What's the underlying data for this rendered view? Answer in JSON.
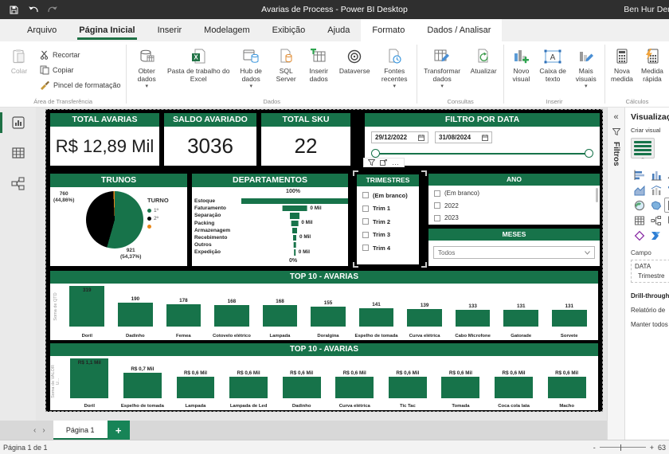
{
  "colors": {
    "green": "#17734a",
    "orange": "#e8871a",
    "accent": "#1e7145"
  },
  "title_bar": {
    "title": "Avarias de Process - Power BI Desktop",
    "user": "Ben Hur Den"
  },
  "tabs": [
    {
      "label": "Arquivo"
    },
    {
      "label": "Página Inicial"
    },
    {
      "label": "Inserir"
    },
    {
      "label": "Modelagem"
    },
    {
      "label": "Exibição"
    },
    {
      "label": "Ajuda"
    },
    {
      "label": "Formato"
    },
    {
      "label": "Dados / Analisar"
    }
  ],
  "ribbon": {
    "colar": "Colar",
    "recortar": "Recortar",
    "copiar": "Copiar",
    "pincel": "Pincel de formatação",
    "g_transferencia": "Área de Transferência",
    "obter_dados": "Obter dados",
    "excel": "Pasta de trabalho do Excel",
    "hub": "Hub de dados",
    "sql": "SQL Server",
    "inserir_dados": "Inserir dados",
    "dataverse": "Dataverse",
    "fontes": "Fontes recentes",
    "g_dados": "Dados",
    "transformar": "Transformar dados",
    "atualizar": "Atualizar",
    "g_consultas": "Consultas",
    "novo_visual": "Novo visual",
    "caixa_texto": "Caixa de texto",
    "mais_visuais": "Mais visuais",
    "g_inserir": "Inserir",
    "nova_medida": "Nova medida",
    "medida_rapida": "Medida rápida",
    "g_calculos": "Cálculos"
  },
  "dashboard": {
    "kpis": [
      {
        "title": "TOTAL AVARIAS",
        "value": "R$ 12,89 Mil"
      },
      {
        "title": "SALDO AVARIADO",
        "value": "3036"
      },
      {
        "title": "TOTAL SKU",
        "value": "22"
      }
    ],
    "date_filter": {
      "title": "FILTRO POR DATA",
      "start": "29/12/2022",
      "end": "31/08/2024"
    },
    "trimestres": {
      "title": "TRIMESTRES",
      "items": [
        "(Em branco)",
        "Trim 1",
        "Trim 2",
        "Trim 3",
        "Trim 4"
      ]
    },
    "ano": {
      "title": "ANO",
      "items": [
        "(Em branco)",
        "2022",
        "2023"
      ]
    },
    "meses": {
      "title": "MESES",
      "value": "Todos"
    }
  },
  "chart_data": [
    {
      "type": "pie",
      "title": "TRUNOS",
      "legend_title": "TURNO",
      "slices": [
        {
          "label": "1º",
          "value": 921,
          "pct": 54.37,
          "color": "#17734a"
        },
        {
          "label": "2º",
          "value": 760,
          "pct": 44.86,
          "color": "#000000"
        },
        {
          "label": "",
          "value": 13,
          "pct": 0.77,
          "color": "#e8871a"
        }
      ],
      "callouts": [
        {
          "line1": "760",
          "line2": "(44,86%)"
        },
        {
          "line1": "921",
          "line2": "(54,37%)"
        }
      ]
    },
    {
      "type": "funnel",
      "title": "DEPARTAMENTOS",
      "categories": [
        "Estoque",
        "Faturamento",
        "Separação",
        "Packing",
        "Armazenagem",
        "Recebimento",
        "Outros",
        "Expedição"
      ],
      "widths_pct": [
        100,
        23,
        9,
        6.5,
        4.5,
        3,
        2,
        1.2
      ],
      "value_labels": [
        "",
        "0 Mil",
        "",
        "0 Mil",
        "",
        "0 Mil",
        "",
        "0 Mil"
      ],
      "axis_top": "100%",
      "axis_bottom": "0%"
    },
    {
      "type": "bar",
      "title": "TOP 10 - AVARIAS",
      "ylabel": "Soma de QTD",
      "categories": [
        "Doril",
        "Dadinho",
        "Femea",
        "Cotovelo elétrico",
        "Lampada",
        "Doralgina",
        "Espelho de tomada",
        "Curva elétrica",
        "Cabo Microfone",
        "Gatorade",
        "Sorvete"
      ],
      "values": [
        319,
        190,
        178,
        168,
        168,
        155,
        141,
        139,
        133,
        131,
        131
      ]
    },
    {
      "type": "bar",
      "title": "TOP 10 - AVARIAS",
      "ylabel": "Soma de VALOR U...",
      "categories": [
        "Doril",
        "Espelho de tomada",
        "Lampada",
        "Lampada de Led",
        "Dadinho",
        "Curva elétrica",
        "Tic Tac",
        "Tomada",
        "Coca cola lata",
        "Macho"
      ],
      "values": [
        1.1,
        0.7,
        0.6,
        0.6,
        0.6,
        0.6,
        0.6,
        0.6,
        0.6,
        0.6
      ],
      "labels": [
        "R$ 1,1 Mil",
        "R$ 0,7 Mil",
        "R$ 0,6 Mil",
        "R$ 0,6 Mil",
        "R$ 0,6 Mil",
        "R$ 0,6 Mil",
        "R$ 0,6 Mil",
        "R$ 0,6 Mil",
        "R$ 0,6 Mil",
        "R$ 0,6 Mil"
      ]
    }
  ],
  "right_panel": {
    "filtros": "Filtros",
    "vis_title": "Visualizações",
    "criar_visual": "Criar visual",
    "campo": "Campo",
    "field_table": "DATA",
    "field_value": "Trimestre",
    "drill_title": "Drill-through",
    "drill_item1": "Relatório de",
    "drill_item2": "Manter todos"
  },
  "footer": {
    "page_tab": "Página 1",
    "status": "Página 1 de 1",
    "zoom_value": "63"
  }
}
